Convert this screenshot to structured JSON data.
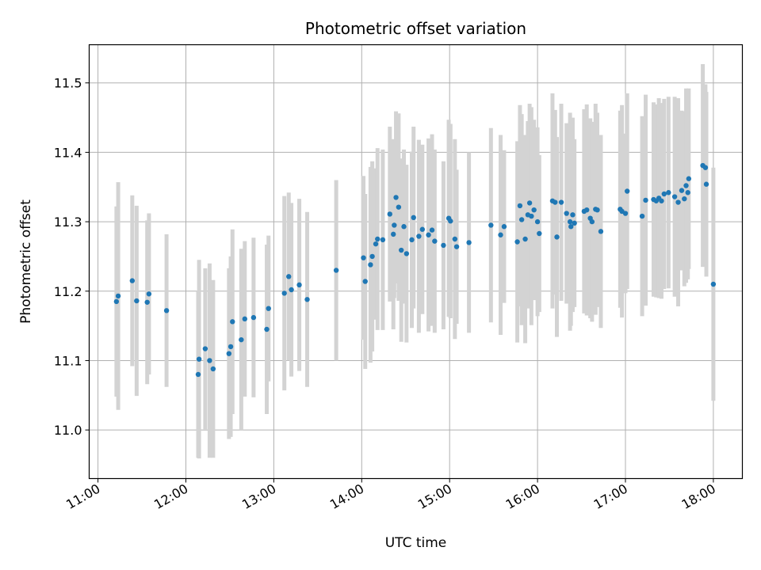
{
  "chart_data": {
    "type": "scatter",
    "title": "Photometric offset variation",
    "xlabel": "UTC time",
    "ylabel": "Photometric offset",
    "x_units": "hours UTC",
    "xlim": [
      10.9,
      18.33
    ],
    "ylim": [
      10.93,
      11.555
    ],
    "x_ticks": [
      11,
      12,
      13,
      14,
      15,
      16,
      17,
      18
    ],
    "x_tick_labels": [
      "11:00",
      "12:00",
      "13:00",
      "14:00",
      "15:00",
      "16:00",
      "17:00",
      "18:00"
    ],
    "y_ticks": [
      11.0,
      11.1,
      11.2,
      11.3,
      11.4,
      11.5
    ],
    "y_tick_labels": [
      "11.0",
      "11.1",
      "11.2",
      "11.3",
      "11.4",
      "11.5"
    ],
    "grid": true,
    "colors": {
      "point": "#1f77b4",
      "error_bar": "#d3d3d3"
    },
    "series": [
      {
        "x": [
          11.21,
          11.23,
          11.39,
          11.44,
          11.56,
          11.58,
          11.78,
          12.14,
          12.15,
          12.22,
          12.27,
          12.31,
          12.49,
          12.51,
          12.53,
          12.63,
          12.67,
          12.77,
          12.92,
          12.94,
          13.12,
          13.17,
          13.2,
          13.29,
          13.38,
          13.71,
          14.02,
          14.04,
          14.1,
          14.12,
          14.16,
          14.18,
          14.24,
          14.32,
          14.36,
          14.37,
          14.39,
          14.42,
          14.45,
          14.48,
          14.51,
          14.57,
          14.59,
          14.65,
          14.69,
          14.76,
          14.8,
          14.83,
          14.93,
          14.99,
          15.01,
          15.06,
          15.08,
          15.22,
          15.47,
          15.58,
          15.62,
          15.77,
          15.8,
          15.82,
          15.86,
          15.89,
          15.91,
          15.93,
          15.96,
          16.0,
          16.02,
          16.17,
          16.2,
          16.22,
          16.27,
          16.33,
          16.37,
          16.38,
          16.4,
          16.42,
          16.53,
          16.56,
          16.6,
          16.62,
          16.66,
          16.68,
          16.72,
          16.94,
          16.96,
          17.0,
          17.02,
          17.19,
          17.23,
          17.32,
          17.35,
          17.38,
          17.41,
          17.44,
          17.49,
          17.56,
          17.6,
          17.64,
          17.67,
          17.69,
          17.71,
          17.72,
          17.88,
          17.91,
          17.92,
          18.0
        ],
        "y": [
          11.185,
          11.193,
          11.215,
          11.186,
          11.184,
          11.196,
          11.172,
          11.08,
          11.102,
          11.117,
          11.1,
          11.088,
          11.11,
          11.12,
          11.156,
          11.13,
          11.16,
          11.162,
          11.145,
          11.175,
          11.197,
          11.221,
          11.202,
          11.209,
          11.188,
          11.23,
          11.248,
          11.214,
          11.238,
          11.25,
          11.268,
          11.275,
          11.274,
          11.311,
          11.282,
          11.295,
          11.335,
          11.321,
          11.259,
          11.293,
          11.254,
          11.274,
          11.306,
          11.279,
          11.289,
          11.281,
          11.288,
          11.272,
          11.266,
          11.305,
          11.301,
          11.275,
          11.264,
          11.27,
          11.295,
          11.281,
          11.293,
          11.271,
          11.323,
          11.303,
          11.275,
          11.31,
          11.327,
          11.308,
          11.317,
          11.3,
          11.283,
          11.33,
          11.328,
          11.278,
          11.328,
          11.312,
          11.3,
          11.293,
          11.31,
          11.298,
          11.315,
          11.317,
          11.305,
          11.3,
          11.318,
          11.317,
          11.286,
          11.318,
          11.315,
          11.312,
          11.344,
          11.308,
          11.331,
          11.332,
          11.33,
          11.334,
          11.33,
          11.34,
          11.342,
          11.336,
          11.328,
          11.345,
          11.333,
          11.352,
          11.342,
          11.362,
          11.381,
          11.378,
          11.354,
          11.21
        ],
        "err": [
          0.137,
          0.164,
          0.123,
          0.137,
          0.118,
          0.116,
          0.11,
          0.12,
          0.143,
          0.116,
          0.14,
          0.128,
          0.123,
          0.13,
          0.133,
          0.131,
          0.112,
          0.115,
          0.122,
          0.105,
          0.14,
          0.121,
          0.125,
          0.124,
          0.126,
          0.13,
          0.118,
          0.126,
          0.141,
          0.137,
          0.109,
          0.131,
          0.13,
          0.126,
          0.137,
          0.105,
          0.124,
          0.135,
          0.132,
          0.111,
          0.128,
          0.127,
          0.131,
          0.139,
          0.122,
          0.139,
          0.138,
          0.132,
          0.121,
          0.142,
          0.14,
          0.144,
          0.111,
          0.13,
          0.14,
          0.144,
          0.11,
          0.145,
          0.145,
          0.152,
          0.15,
          0.135,
          0.143,
          0.157,
          0.13,
          0.136,
          0.113,
          0.155,
          0.133,
          0.144,
          0.142,
          0.13,
          0.157,
          0.143,
          0.14,
          0.121,
          0.147,
          0.152,
          0.144,
          0.144,
          0.152,
          0.14,
          0.139,
          0.142,
          0.153,
          0.115,
          0.141,
          0.144,
          0.152,
          0.14,
          0.139,
          0.144,
          0.141,
          0.137,
          0.138,
          0.144,
          0.15,
          0.115,
          0.126,
          0.14,
          0.125,
          0.13,
          0.146,
          0.12,
          0.133,
          0.168
        ]
      }
    ]
  }
}
